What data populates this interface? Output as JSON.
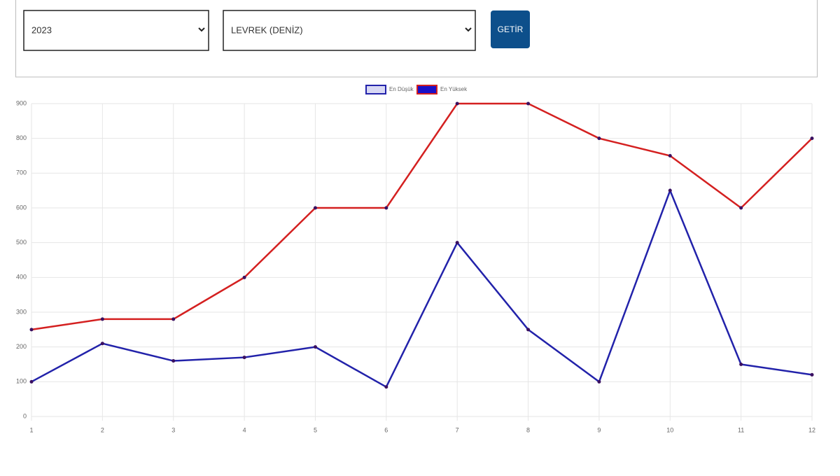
{
  "form": {
    "year": "2023",
    "product": "LEVREK (DENİZ)",
    "button": "GETİR"
  },
  "chart_data": {
    "type": "line",
    "categories": [
      "1",
      "2",
      "3",
      "4",
      "5",
      "6",
      "7",
      "8",
      "9",
      "10",
      "11",
      "12"
    ],
    "series": [
      {
        "name": "En Düşük",
        "color": "#2222aa",
        "fill": "#d8d8f4",
        "values": [
          100,
          210,
          160,
          170,
          200,
          85,
          500,
          250,
          100,
          650,
          150,
          120
        ]
      },
      {
        "name": "En Yüksek",
        "color": "#d42020",
        "fill": "#1a10c8",
        "values": [
          250,
          280,
          280,
          400,
          600,
          600,
          900,
          900,
          800,
          750,
          600,
          800
        ]
      }
    ],
    "ylim": [
      0,
      900
    ],
    "yticks": [
      0,
      100,
      200,
      300,
      400,
      500,
      600,
      700,
      800,
      900
    ],
    "grid": true,
    "legend": "top"
  }
}
